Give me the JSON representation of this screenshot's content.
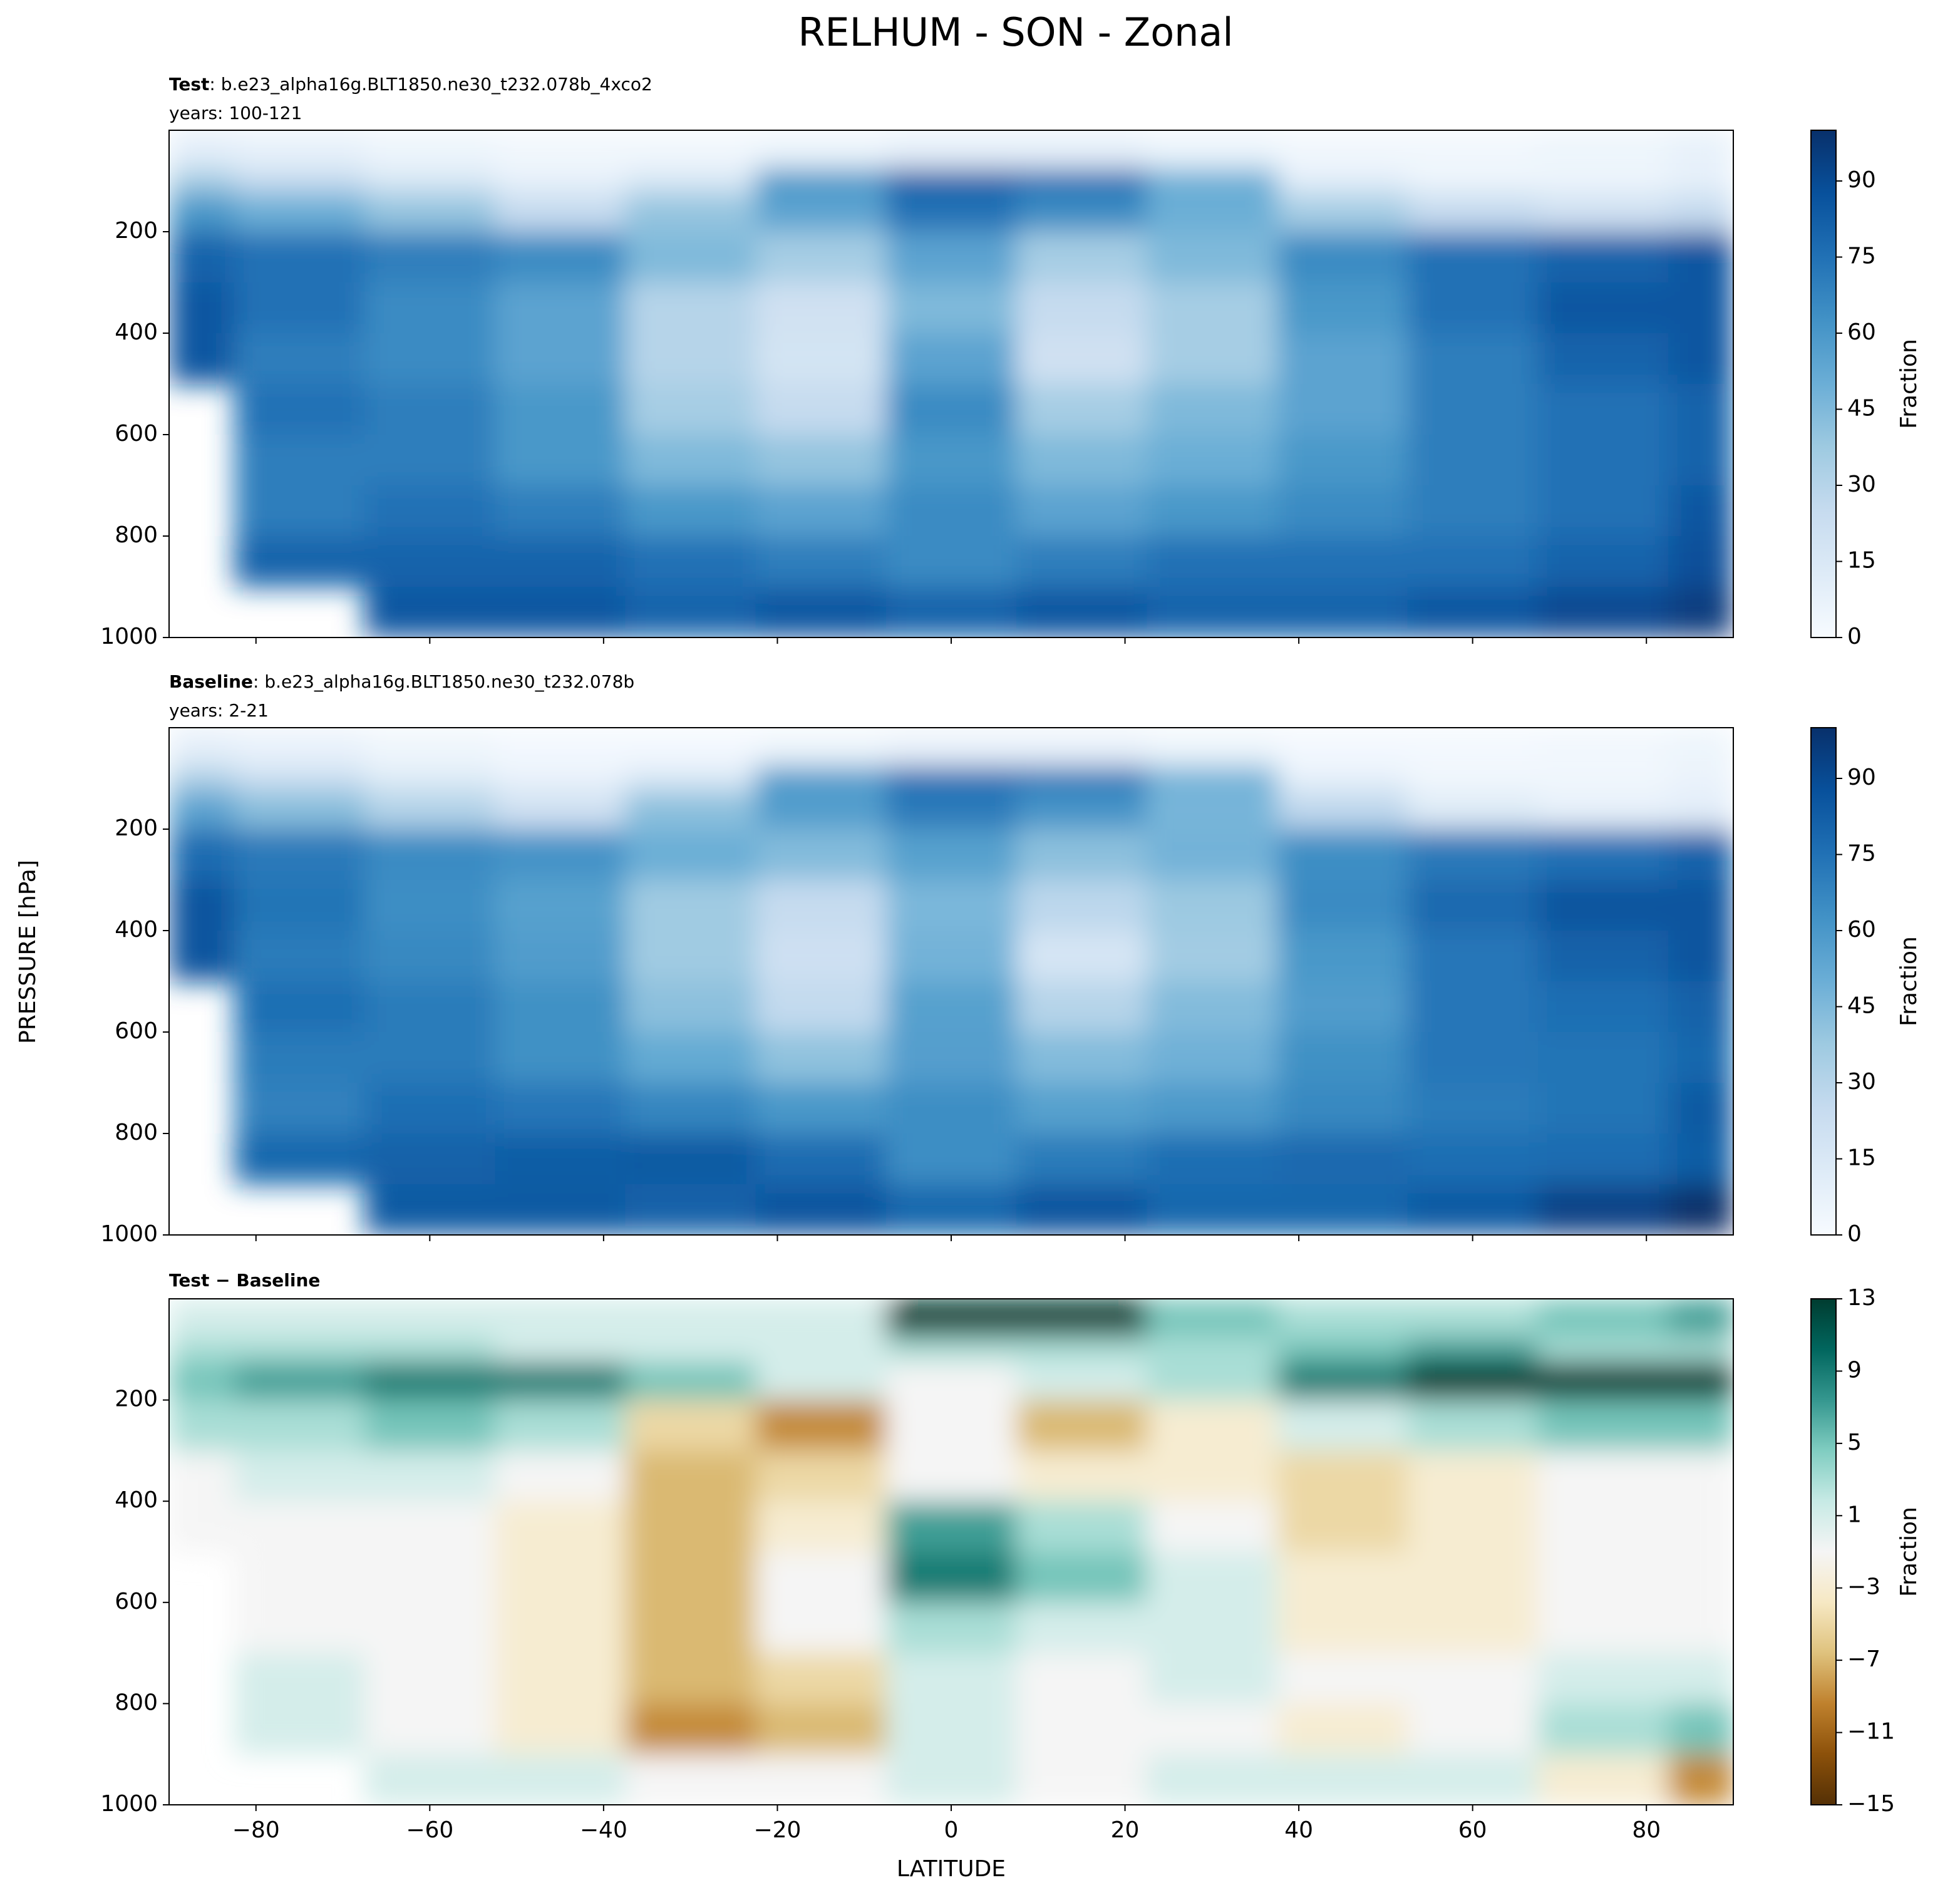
{
  "title": "RELHUM - SON - Zonal",
  "ylabel": "PRESSURE [hPa]",
  "chart_data": [
    {
      "type": "contour",
      "title": "Test",
      "title_detail": ": b.e23_alpha16g.BLT1850.ne30_t232.078b_4xco2",
      "subtitle": "years: 100-121",
      "colorbar_label": "Fraction",
      "cmap": [
        "#f7fbff",
        "#deebf7",
        "#c6dbef",
        "#9ecae1",
        "#6baed6",
        "#4292c6",
        "#2171b5",
        "#08519c",
        "#08306b"
      ],
      "clim": [
        0,
        100
      ],
      "cticks": [
        0,
        15,
        30,
        45,
        60,
        75,
        90
      ],
      "xlim": [
        -90,
        90
      ],
      "ylim": [
        1000,
        0
      ],
      "xticks": [
        -80,
        -60,
        -40,
        -20,
        0,
        20,
        40,
        60,
        80
      ],
      "yticks": [
        200,
        400,
        600,
        800,
        1000
      ],
      "x": [
        -90,
        -75,
        -60,
        -45,
        -30,
        -15,
        0,
        15,
        30,
        45,
        60,
        75,
        90
      ],
      "y": [
        50,
        100,
        150,
        250,
        350,
        450,
        550,
        650,
        750,
        850,
        950
      ],
      "z": [
        [
          10,
          8,
          5,
          3,
          3,
          5,
          8,
          8,
          5,
          3,
          3,
          5,
          8
        ],
        [
          35,
          25,
          15,
          8,
          15,
          60,
          80,
          75,
          50,
          10,
          5,
          5,
          8
        ],
        [
          60,
          50,
          40,
          25,
          40,
          55,
          75,
          65,
          50,
          35,
          25,
          20,
          25
        ],
        [
          80,
          75,
          70,
          65,
          45,
          35,
          55,
          35,
          45,
          65,
          75,
          80,
          85
        ],
        [
          85,
          75,
          65,
          55,
          30,
          20,
          45,
          25,
          35,
          60,
          75,
          85,
          85
        ],
        [
          85,
          70,
          65,
          55,
          30,
          18,
          55,
          20,
          35,
          55,
          70,
          80,
          85
        ],
        [
          null,
          75,
          70,
          60,
          35,
          25,
          65,
          35,
          45,
          55,
          70,
          75,
          80
        ],
        [
          null,
          70,
          70,
          60,
          45,
          40,
          60,
          45,
          50,
          60,
          70,
          75,
          80
        ],
        [
          null,
          70,
          75,
          70,
          60,
          55,
          65,
          55,
          60,
          65,
          70,
          75,
          85
        ],
        [
          null,
          80,
          80,
          80,
          75,
          70,
          65,
          70,
          75,
          75,
          75,
          80,
          88
        ],
        [
          null,
          null,
          85,
          85,
          80,
          85,
          80,
          85,
          80,
          80,
          85,
          90,
          95
        ]
      ]
    },
    {
      "type": "contour",
      "title": "Baseline",
      "title_detail": ": b.e23_alpha16g.BLT1850.ne30_t232.078b",
      "subtitle": "years: 2-21",
      "colorbar_label": "Fraction",
      "cmap": [
        "#f7fbff",
        "#deebf7",
        "#c6dbef",
        "#9ecae1",
        "#6baed6",
        "#4292c6",
        "#2171b5",
        "#08519c",
        "#08306b"
      ],
      "clim": [
        0,
        100
      ],
      "cticks": [
        0,
        15,
        30,
        45,
        60,
        75,
        90
      ],
      "xlim": [
        -90,
        90
      ],
      "ylim": [
        1000,
        0
      ],
      "xticks": [
        -80,
        -60,
        -40,
        -20,
        0,
        20,
        40,
        60,
        80
      ],
      "yticks": [
        200,
        400,
        600,
        800,
        1000
      ],
      "x": [
        -90,
        -75,
        -60,
        -45,
        -30,
        -15,
        0,
        15,
        30,
        45,
        60,
        75,
        90
      ],
      "y": [
        50,
        100,
        150,
        250,
        350,
        450,
        550,
        650,
        750,
        850,
        950
      ],
      "z": [
        [
          9,
          7,
          4,
          2,
          2,
          4,
          6,
          6,
          4,
          2,
          2,
          3,
          5
        ],
        [
          32,
          22,
          12,
          7,
          14,
          58,
          75,
          72,
          48,
          8,
          3,
          3,
          6
        ],
        [
          55,
          43,
          31,
          20,
          42,
          58,
          72,
          62,
          47,
          27,
          12,
          8,
          10
        ],
        [
          77,
          72,
          65,
          62,
          50,
          44,
          56,
          42,
          48,
          64,
          72,
          75,
          80
        ],
        [
          86,
          74,
          64,
          56,
          37,
          25,
          46,
          28,
          38,
          65,
          78,
          86,
          86
        ],
        [
          86,
          71,
          66,
          58,
          37,
          21,
          48,
          17,
          36,
          60,
          73,
          81,
          86
        ],
        [
          null,
          76,
          71,
          63,
          42,
          26,
          56,
          30,
          44,
          58,
          73,
          76,
          81
        ],
        [
          null,
          71,
          71,
          63,
          52,
          41,
          57,
          44,
          49,
          63,
          73,
          74,
          79
        ],
        [
          null,
          69,
          76,
          73,
          67,
          60,
          64,
          56,
          59,
          66,
          71,
          74,
          84
        ],
        [
          null,
          79,
          81,
          83,
          84,
          77,
          64,
          71,
          76,
          78,
          76,
          77,
          83
        ],
        [
          null,
          null,
          84,
          84,
          81,
          86,
          79,
          86,
          79,
          79,
          84,
          93,
          104
        ]
      ]
    },
    {
      "type": "contour",
      "title": "Test − Baseline",
      "colorbar_label": "Fraction",
      "xlabel": "LATITUDE",
      "cmap": [
        "#543005",
        "#8c510a",
        "#bf812d",
        "#dfc27d",
        "#f6e8c3",
        "#f5f5f5",
        "#c7eae5",
        "#80cdc1",
        "#35978f",
        "#01665e",
        "#003c30"
      ],
      "clim": [
        -15,
        13
      ],
      "cticks": [
        {
          "value": -15,
          "label": "−15"
        },
        {
          "value": -11,
          "label": "−11"
        },
        {
          "value": -7,
          "label": "−7"
        },
        {
          "value": -3,
          "label": "−3"
        },
        1,
        5,
        9,
        13
      ],
      "xlim": [
        -90,
        90
      ],
      "ylim": [
        1000,
        0
      ],
      "xticks": [
        {
          "value": -80,
          "label": "−80"
        },
        {
          "value": -60,
          "label": "−60"
        },
        {
          "value": -40,
          "label": "−40"
        },
        {
          "value": -20,
          "label": "−20"
        },
        0,
        20,
        40,
        60,
        80
      ],
      "yticks": [
        200,
        400,
        600,
        800,
        1000
      ],
      "x": [
        -90,
        -75,
        -60,
        -45,
        -30,
        -15,
        0,
        15,
        30,
        45,
        60,
        75,
        90
      ],
      "y": [
        50,
        100,
        150,
        250,
        350,
        450,
        550,
        650,
        750,
        850,
        950
      ],
      "z": [
        [
          1,
          1,
          1,
          1,
          1,
          1,
          15,
          15,
          5,
          3,
          3,
          5,
          7
        ],
        [
          3,
          3,
          3,
          1,
          1,
          1,
          3,
          3,
          3,
          5,
          7,
          3,
          3
        ],
        [
          5,
          7,
          9,
          9,
          5,
          1,
          -1,
          1,
          3,
          9,
          15,
          15,
          15
        ],
        [
          3,
          3,
          5,
          3,
          -5,
          -9,
          -1,
          -7,
          -3,
          1,
          3,
          5,
          5
        ],
        [
          -1,
          1,
          1,
          -1,
          -7,
          -5,
          -1,
          -3,
          -3,
          -5,
          -3,
          -1,
          -1
        ],
        [
          -1,
          -1,
          -1,
          -3,
          -7,
          -3,
          7,
          3,
          -1,
          -5,
          -3,
          -1,
          -1
        ],
        [
          null,
          -1,
          -1,
          -3,
          -7,
          -1,
          9,
          5,
          1,
          -3,
          -3,
          -1,
          -1
        ],
        [
          null,
          -1,
          -1,
          -3,
          -7,
          -1,
          3,
          1,
          1,
          -3,
          -3,
          -1,
          -1
        ],
        [
          null,
          1,
          -1,
          -3,
          -7,
          -5,
          1,
          -1,
          1,
          -1,
          -1,
          1,
          1
        ],
        [
          null,
          1,
          -1,
          -3,
          -9,
          -7,
          1,
          -1,
          -1,
          -3,
          -1,
          3,
          5
        ],
        [
          null,
          null,
          1,
          1,
          -1,
          -1,
          1,
          -1,
          1,
          1,
          1,
          -3,
          -9
        ]
      ]
    }
  ]
}
